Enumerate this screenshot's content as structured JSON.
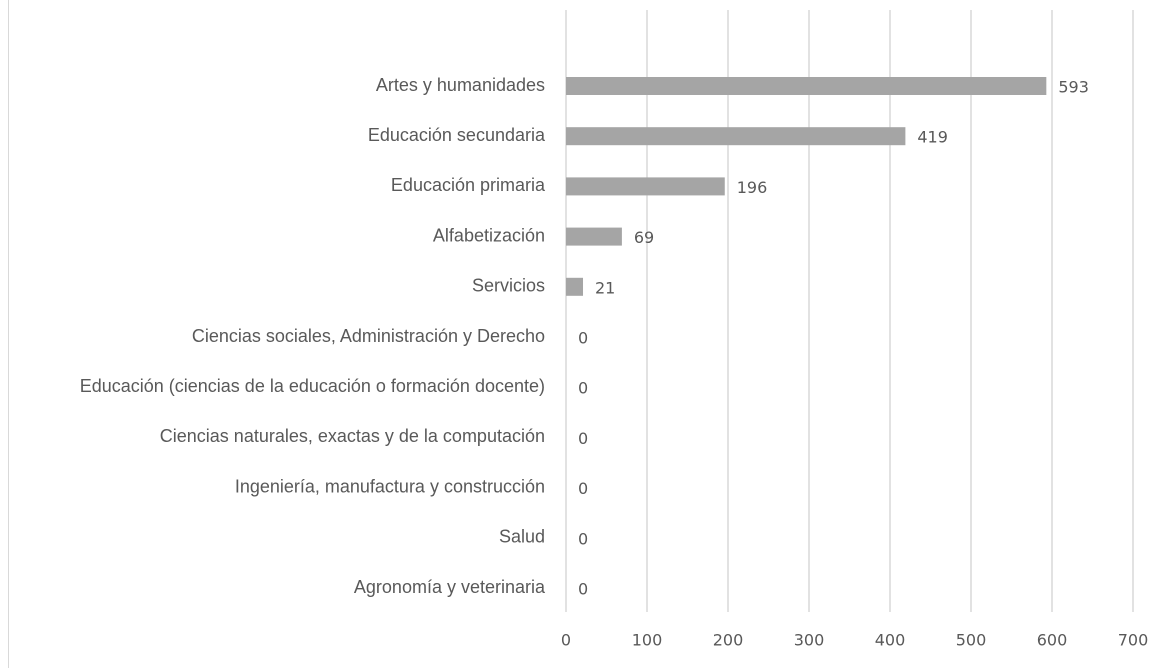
{
  "chart_data": {
    "type": "bar",
    "orientation": "horizontal",
    "categories": [
      "Artes y humanidades",
      "Educación secundaria",
      "Educación primaria",
      "Alfabetización",
      "Servicios",
      "Ciencias sociales, Administración y Derecho",
      "Educación (ciencias de la educación o formación docente)",
      "Ciencias naturales, exactas y de la computación",
      "Ingeniería, manufactura y construcción",
      "Salud",
      "Agronomía y veterinaria"
    ],
    "values": [
      593,
      419,
      196,
      69,
      21,
      0,
      0,
      0,
      0,
      0,
      0
    ],
    "color": "#a5a5a5",
    "xlim": [
      0,
      700
    ],
    "xticks": [
      0,
      100,
      200,
      300,
      400,
      500,
      600,
      700
    ],
    "grid": true
  }
}
